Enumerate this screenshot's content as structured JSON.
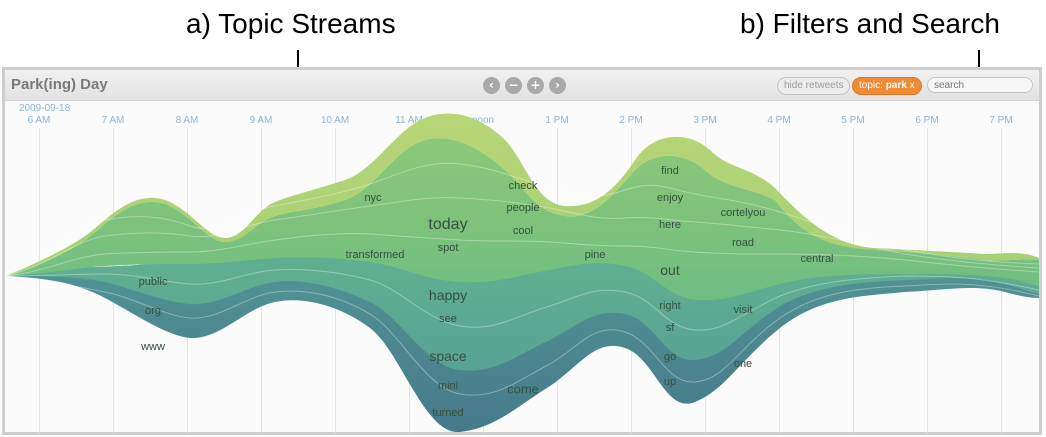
{
  "annotations": {
    "topic_streams": "a) Topic Streams",
    "filters_search": "b) Filters and Search"
  },
  "app": {
    "title": "Park(ing) Day",
    "date": "2009-09-18"
  },
  "toolbar": {
    "nav_buttons": [
      {
        "icon": "chevron-left-icon",
        "glyph": "‹"
      },
      {
        "icon": "minus-icon",
        "glyph": "−"
      },
      {
        "icon": "plus-icon",
        "glyph": "+"
      },
      {
        "icon": "chevron-right-icon",
        "glyph": "›"
      }
    ],
    "hide_retweets": "hide retweets",
    "topic_prefix": "topic: ",
    "topic_value": "park",
    "topic_remove": "x",
    "search_placeholder": "search"
  },
  "timeline": {
    "ticks": [
      "6 AM",
      "7 AM",
      "8 AM",
      "9 AM",
      "10 AM",
      "11 AM",
      "noon",
      "1 PM",
      "2 PM",
      "3 PM",
      "4 PM",
      "5 PM",
      "6 PM",
      "7 PM"
    ]
  },
  "words": [
    "nyc",
    "check",
    "find",
    "people",
    "enjoy",
    "cortelyou",
    "today",
    "cool",
    "here",
    "road",
    "spot",
    "transformed",
    "pine",
    "central",
    "out",
    "public",
    "happy",
    "org",
    "right",
    "visit",
    "see",
    "sf",
    "www",
    "space",
    "go",
    "one",
    "mini",
    "come",
    "up",
    "turned"
  ],
  "colors": {
    "stream_top": "#b9d77a",
    "stream_mid": "#7cc17e",
    "stream_low": "#5ba49a",
    "stream_bottom": "#4a7f8e",
    "topic_pill": "#f08a35",
    "tick_text": "#8db3d4"
  }
}
